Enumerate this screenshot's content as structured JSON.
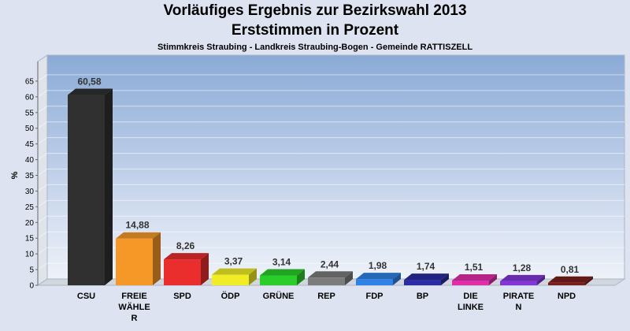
{
  "chart_data": {
    "type": "bar",
    "title": "Vorläufiges Ergebnis zur Bezirkswahl 2013",
    "subtitle": "Erststimmen in Prozent",
    "caption": "Stimmkreis Straubing - Landkreis Straubing-Bogen - Gemeinde RATTISZELL",
    "ylabel": "%",
    "xlabel": "",
    "ylim": [
      0,
      70
    ],
    "yticks": [
      0,
      5,
      10,
      15,
      20,
      25,
      30,
      35,
      40,
      45,
      50,
      55,
      60,
      65
    ],
    "grid": true,
    "categories": [
      [
        "CSU"
      ],
      [
        "FREIE",
        "WÄHLE",
        "R"
      ],
      [
        "SPD"
      ],
      [
        "ÖDP"
      ],
      [
        "GRÜNE"
      ],
      [
        "REP"
      ],
      [
        "FDP"
      ],
      [
        "BP"
      ],
      [
        "DIE",
        "LINKE"
      ],
      [
        "PIRATE",
        "N"
      ],
      [
        "NPD"
      ]
    ],
    "values": [
      60.58,
      14.88,
      8.26,
      3.37,
      3.14,
      2.44,
      1.98,
      1.74,
      1.51,
      1.28,
      0.81
    ],
    "value_labels": [
      "60,58",
      "14,88",
      "8,26",
      "3,37",
      "3,14",
      "2,44",
      "1,98",
      "1,74",
      "1,51",
      "1,28",
      "0,81"
    ],
    "colors": [
      "#303030",
      "#f59828",
      "#ea2d2d",
      "#f0ec26",
      "#2bcd2b",
      "#7c7c7c",
      "#2e82e6",
      "#2c2ca2",
      "#e02ea8",
      "#8435d9",
      "#7c1d1d"
    ]
  }
}
